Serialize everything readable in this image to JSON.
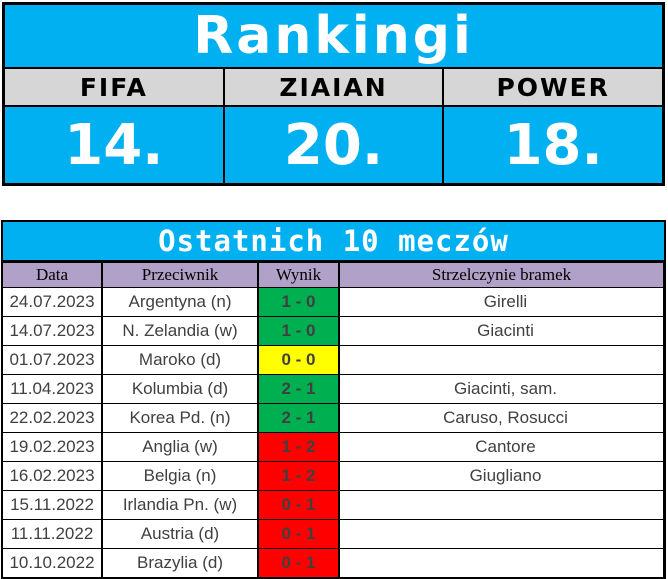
{
  "colors": {
    "accent_cyan": "#00B0F0",
    "label_band_gray": "#D6D6D6",
    "header_purple": "#B1A0C7",
    "win_green": "#00B050",
    "draw_yellow": "#FFFF00",
    "loss_red": "#FF0000"
  },
  "rankings": {
    "title": "Rankingi",
    "columns": [
      {
        "label": "FIFA",
        "value": "14."
      },
      {
        "label": "ZIAIAN",
        "value": "20."
      },
      {
        "label": "POWER",
        "value": "18."
      }
    ]
  },
  "matches": {
    "title": "Ostatnich 10 meczów",
    "headers": [
      "Data",
      "Przeciwnik",
      "Wynik",
      "Strzelczynie bramek"
    ],
    "rows": [
      {
        "date": "24.07.2023",
        "opponent": "Argentyna (n)",
        "score": "1 - 0",
        "result": "win",
        "scorers": "Girelli"
      },
      {
        "date": "14.07.2023",
        "opponent": "N. Zelandia (w)",
        "score": "1 - 0",
        "result": "win",
        "scorers": "Giacinti"
      },
      {
        "date": "01.07.2023",
        "opponent": "Maroko (d)",
        "score": "0 - 0",
        "result": "draw",
        "scorers": ""
      },
      {
        "date": "11.04.2023",
        "opponent": "Kolumbia (d)",
        "score": "2 - 1",
        "result": "win",
        "scorers": "Giacinti, sam."
      },
      {
        "date": "22.02.2023",
        "opponent": "Korea Pd. (n)",
        "score": "2 - 1",
        "result": "win",
        "scorers": "Caruso, Rosucci"
      },
      {
        "date": "19.02.2023",
        "opponent": "Anglia (w)",
        "score": "1 - 2",
        "result": "loss",
        "scorers": "Cantore"
      },
      {
        "date": "16.02.2023",
        "opponent": "Belgia (n)",
        "score": "1 - 2",
        "result": "loss",
        "scorers": "Giugliano"
      },
      {
        "date": "15.11.2022",
        "opponent": "Irlandia Pn. (w)",
        "score": "0 - 1",
        "result": "loss",
        "scorers": ""
      },
      {
        "date": "11.11.2022",
        "opponent": "Austria (d)",
        "score": "0 - 1",
        "result": "loss",
        "scorers": ""
      },
      {
        "date": "10.10.2022",
        "opponent": "Brazylia (d)",
        "score": "0 - 1",
        "result": "loss",
        "scorers": ""
      }
    ]
  }
}
